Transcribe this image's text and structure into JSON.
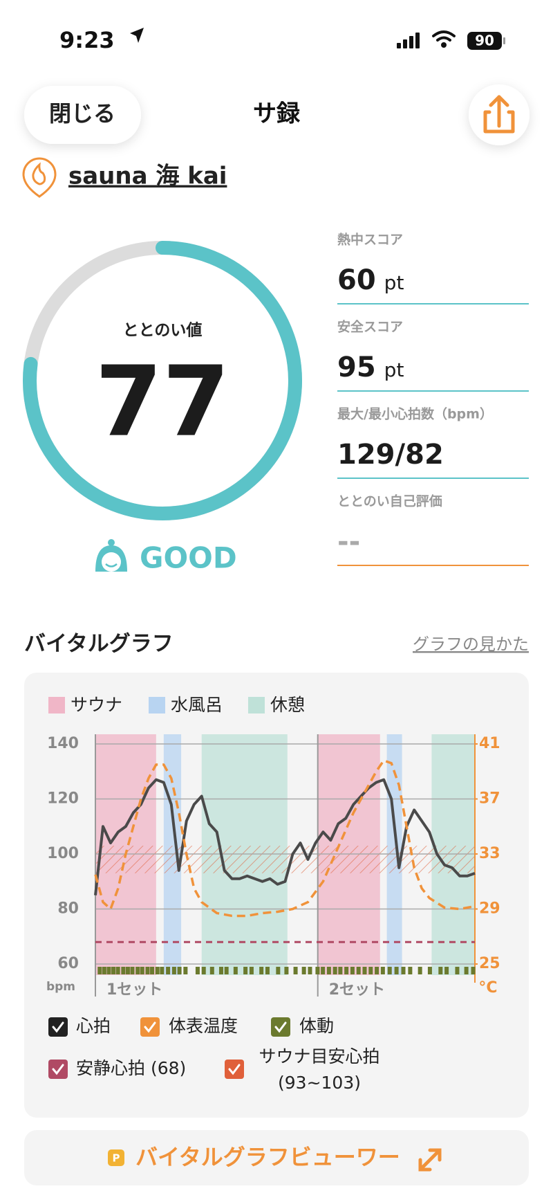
{
  "status_bar": {
    "time": "9:23",
    "battery": 90
  },
  "header": {
    "close": "閉じる",
    "title": "サ録"
  },
  "facility": "sauna 海 kai",
  "score": {
    "label": "ととのい値",
    "value": 77,
    "range": [
      0,
      100
    ],
    "rating": "GOOD"
  },
  "stats": [
    {
      "label": "熱中スコア",
      "value": 60,
      "unit": "pt"
    },
    {
      "label": "安全スコア",
      "value": 95,
      "unit": "pt"
    },
    {
      "label": "最大/最小心拍数（bpm）",
      "value": "129/82"
    },
    {
      "label": "ととのい自己評価",
      "value": "--"
    }
  ],
  "section": {
    "title": "バイタルグラフ",
    "link": "グラフの見かた"
  },
  "chart_data": {
    "type": "line",
    "xlim": [
      0,
      50
    ],
    "ylim": [
      60,
      140
    ],
    "yticks": [
      60,
      80,
      100,
      120,
      140
    ],
    "y2lim": [
      25,
      41
    ],
    "y2ticks": [
      25,
      29,
      33,
      37,
      41
    ],
    "grid": true,
    "y_unit": "bpm",
    "y2_unit": "°C",
    "phases": [
      {
        "name": "サウナ",
        "color": "#f0b6c7",
        "ranges": [
          [
            0,
            8
          ],
          [
            29.3,
            37.5
          ]
        ]
      },
      {
        "name": "水風呂",
        "color": "#b8d4f1",
        "ranges": [
          [
            9,
            11.3
          ],
          [
            38.4,
            40.4
          ]
        ]
      },
      {
        "name": "休憩",
        "color": "#bfe1d8",
        "ranges": [
          [
            14,
            25.3
          ],
          [
            44.3,
            50
          ]
        ]
      }
    ],
    "sets": [
      {
        "label": "1セット",
        "x": 0
      },
      {
        "label": "2セット",
        "x": 29.3
      }
    ],
    "series": [
      {
        "name": "心拍",
        "color": "#4a4a4a",
        "x": [
          0,
          1,
          2,
          3,
          4,
          5,
          6,
          7,
          8,
          9,
          10,
          11,
          12,
          13,
          14,
          15,
          16,
          17,
          18,
          19,
          20,
          21,
          22,
          23,
          24,
          25,
          26,
          27,
          28,
          29,
          30,
          31,
          32,
          33,
          34,
          35,
          36,
          37,
          38,
          39,
          40,
          41,
          42,
          43,
          44,
          45,
          46,
          47,
          48,
          49,
          50
        ],
        "values": [
          85,
          110,
          104,
          108,
          110,
          115,
          118,
          124,
          127,
          126,
          118,
          94,
          112,
          118,
          121,
          111,
          108,
          94,
          91,
          91,
          92,
          91,
          90,
          91,
          89,
          90,
          100,
          104,
          98,
          104,
          108,
          105,
          111,
          113,
          118,
          121,
          124,
          126,
          127,
          120,
          95,
          110,
          116,
          112,
          108,
          100,
          96,
          95,
          92,
          92,
          93
        ]
      },
      {
        "name": "体表温度",
        "color": "#f0923a",
        "axis": "y2",
        "dashed": true,
        "x": [
          0,
          1,
          2,
          3,
          4,
          5,
          6,
          7,
          8,
          9,
          10,
          11,
          12,
          13,
          14,
          16,
          18,
          20,
          22,
          24,
          26,
          28,
          30,
          32,
          34,
          36,
          37,
          38,
          39,
          40,
          41,
          42,
          43,
          44,
          46,
          48,
          50
        ],
        "values": [
          31.5,
          29.5,
          29,
          30.5,
          33,
          35,
          37,
          38.5,
          39.5,
          39.5,
          38.5,
          36,
          33,
          30.5,
          29.5,
          28.7,
          28.5,
          28.5,
          28.7,
          28.8,
          29,
          29.5,
          31,
          33.5,
          36,
          38,
          39,
          39.8,
          39.6,
          38,
          35,
          32,
          30.5,
          29.8,
          29.1,
          29,
          29.2
        ]
      }
    ],
    "activity": {
      "name": "体動",
      "color": "#6b7a2e",
      "x": [
        0.3,
        0.9,
        1.5,
        2.1,
        2.7,
        3.4,
        4.0,
        4.6,
        5.3,
        5.9,
        6.6,
        7.2,
        7.9,
        8.5,
        9.3,
        10.1,
        10.8,
        11.6,
        13.2,
        14.0,
        15.1,
        16.3,
        17.0,
        18.2,
        19.5,
        20.3,
        21.6,
        22.4,
        23.8,
        24.9,
        26.1,
        27.2,
        28.0,
        29.0,
        29.7,
        30.5,
        31.3,
        32.0,
        32.8,
        33.6,
        34.4,
        35.2,
        36.0,
        36.8,
        37.6,
        38.5,
        39.4,
        40.3,
        41.2,
        42.5,
        43.8,
        45.2,
        46.0,
        47.4,
        48.6,
        49.5
      ]
    },
    "resting": {
      "name": "安静心拍 (68)",
      "value": 68,
      "color": "#b04a64"
    },
    "target": {
      "name": "サウナ目安心拍",
      "range_label": "(93~103)",
      "range": [
        93,
        103
      ],
      "color": "#e0603a"
    }
  },
  "viewer_button": {
    "icon": "P",
    "label": "バイタルグラフビューワー"
  }
}
